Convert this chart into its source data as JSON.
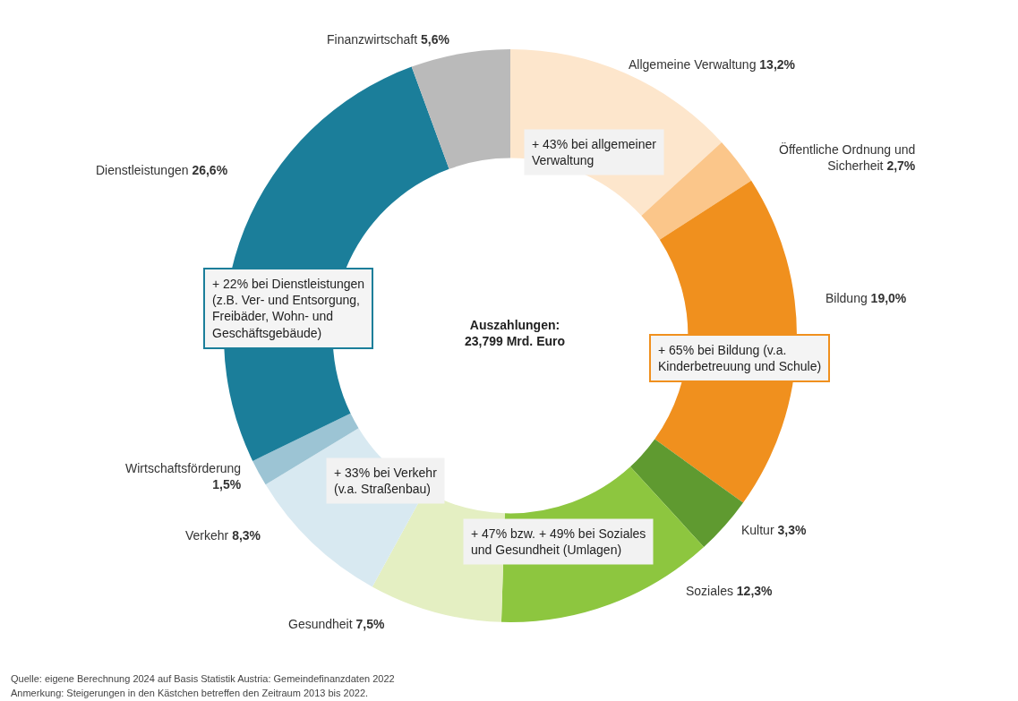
{
  "chart_data": {
    "type": "donut",
    "categories": [
      "Allgemeine Verwaltung",
      "Öffentliche Ordnung und Sicherheit",
      "Bildung",
      "Kultur",
      "Soziales",
      "Gesundheit",
      "Verkehr",
      "Wirtschaftsförderung",
      "Dienstleistungen",
      "Finanzwirtschaft"
    ],
    "values": [
      13.2,
      2.7,
      19.0,
      3.3,
      12.3,
      7.5,
      8.3,
      1.5,
      26.6,
      5.6
    ],
    "value_labels": [
      "13,2%",
      "2,7%",
      "19,0%",
      "3,3%",
      "12,3%",
      "7,5%",
      "8,3%",
      "1,5%",
      "26,6%",
      "5,6%"
    ],
    "colors": [
      "#fde6cc",
      "#fbc68a",
      "#f0901e",
      "#5f9a30",
      "#8dc63f",
      "#e4efc2",
      "#d8e9f1",
      "#9cc4d4",
      "#1b7e9a",
      "#bababa"
    ],
    "legend": false,
    "annotations": [
      "Auszahlungen:\n23,799 Mrd. Euro",
      "+ 43% bei allgemeiner\nVerwaltung",
      "+ 22% bei Dienstleistungen\n(z.B. Ver- und Entsorgung,\nFreibäder, Wohn- und\nGeschäftsgebäude)",
      "+ 65% bei Bildung (v.a.\nKinderbetreuung und Schule)",
      "+ 33% bei Verkehr\n(v.a. Straßenbau)",
      "+ 47% bzw. + 49% bei Soziales\nund Gesundheit (Umlagen)",
      "Quelle: eigene Berechnung 2024 auf Basis Statistik Austria: Gemeindefinanzdaten 2022",
      "Anmerkung: Steigerungen in den Kästchen betreffen den Zeitraum 2013 bis 2022."
    ]
  }
}
